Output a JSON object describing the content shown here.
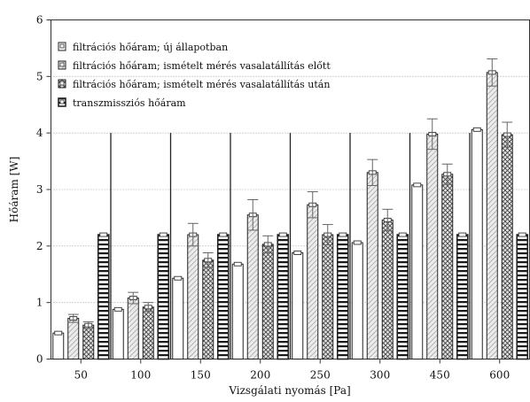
{
  "chart_data": {
    "type": "bar",
    "xlabel": "Vizsgálati nyomás [Pa]",
    "ylabel": "Hőáram [W]",
    "ylim": [
      0,
      6
    ],
    "yticks": [
      0,
      1,
      2,
      3,
      4,
      5,
      6
    ],
    "categories": [
      "50",
      "100",
      "150",
      "200",
      "250",
      "300",
      "450",
      "600"
    ],
    "grid": "horizontal dotted",
    "legend_position": "top-left",
    "series": [
      {
        "name": "filtrációs hőáram; új állapotban",
        "pattern": "plain",
        "values": [
          0.46,
          0.88,
          1.43,
          1.68,
          1.88,
          2.06,
          3.08,
          4.06
        ],
        "errors": [
          0,
          0,
          0,
          0,
          0,
          0,
          0,
          0
        ]
      },
      {
        "name": "filtrációs hőáram; ismételt mérés vasalatállítás előtt",
        "pattern": "diagonal-light",
        "values": [
          0.72,
          1.08,
          2.2,
          2.55,
          2.73,
          3.3,
          3.98,
          5.07
        ],
        "errors": [
          0.07,
          0.1,
          0.2,
          0.27,
          0.23,
          0.23,
          0.27,
          0.24
        ]
      },
      {
        "name": "filtrációs hőáram; ismételt mérés vasalatállítás után",
        "pattern": "crosshatch",
        "values": [
          0.6,
          0.92,
          1.75,
          2.03,
          2.2,
          2.46,
          3.27,
          3.97
        ],
        "errors": [
          0.06,
          0.08,
          0.13,
          0.15,
          0.18,
          0.19,
          0.18,
          0.22
        ]
      },
      {
        "name": "transzmissziós hőáram",
        "pattern": "horizontal",
        "values": [
          2.2,
          2.2,
          2.2,
          2.2,
          2.2,
          2.2,
          2.2,
          2.2
        ],
        "errors": [
          0,
          0,
          0,
          0,
          0,
          0,
          0,
          0
        ]
      }
    ]
  }
}
